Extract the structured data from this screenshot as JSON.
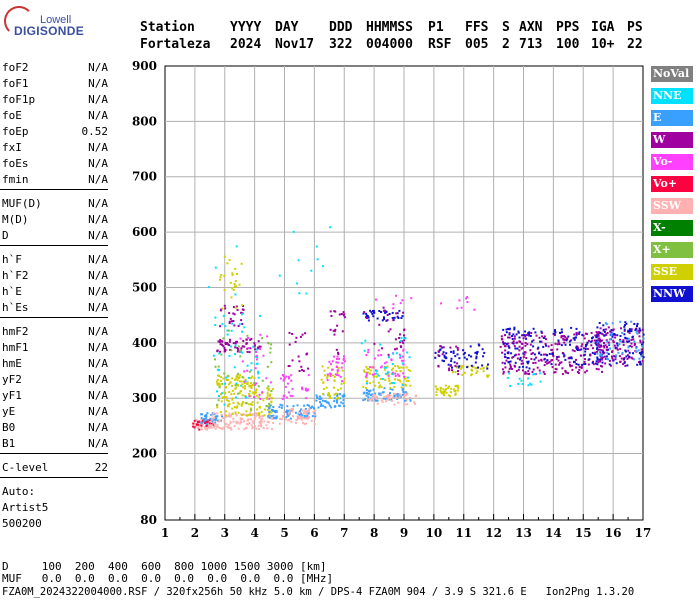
{
  "logo": {
    "top": "Lowell",
    "main": "DIGISONDE"
  },
  "header": {
    "labels": [
      "Station",
      "YYYY",
      "DAY",
      "DDD",
      "HHMMSS",
      "P1",
      "FFS",
      "S",
      "AXN",
      "PPS",
      "IGA",
      "PS"
    ],
    "values": [
      "Fortaleza",
      "2024",
      "Nov17",
      "322",
      "004000",
      "RSF",
      "005",
      "2",
      "713",
      "100",
      "10+",
      "22"
    ]
  },
  "params": [
    [
      {
        "name": "foF2",
        "value": "N/A"
      },
      {
        "name": "foF1",
        "value": "N/A"
      },
      {
        "name": "foF1p",
        "value": "N/A"
      },
      {
        "name": "foE",
        "value": "N/A"
      },
      {
        "name": "foEp",
        "value": "0.52"
      },
      {
        "name": "fxI",
        "value": "N/A"
      },
      {
        "name": "foEs",
        "value": "N/A"
      },
      {
        "name": "fmin",
        "value": "N/A"
      }
    ],
    [
      {
        "name": "MUF(D)",
        "value": "N/A"
      },
      {
        "name": "M(D)",
        "value": "N/A"
      },
      {
        "name": "D",
        "value": "N/A"
      }
    ],
    [
      {
        "name": "h`F",
        "value": "N/A"
      },
      {
        "name": "h`F2",
        "value": "N/A"
      },
      {
        "name": "h`E",
        "value": "N/A"
      },
      {
        "name": "h`Es",
        "value": "N/A"
      }
    ],
    [
      {
        "name": "hmF2",
        "value": "N/A"
      },
      {
        "name": "hmF1",
        "value": "N/A"
      },
      {
        "name": "hmE",
        "value": "N/A"
      },
      {
        "name": "yF2",
        "value": "N/A"
      },
      {
        "name": "yF1",
        "value": "N/A"
      },
      {
        "name": "yE",
        "value": "N/A"
      },
      {
        "name": "B0",
        "value": "N/A"
      },
      {
        "name": "B1",
        "value": "N/A"
      }
    ],
    [
      {
        "name": "C-level",
        "value": "22"
      }
    ]
  ],
  "auto": {
    "line1": "Auto:",
    "line2": "Artist5",
    "line3": "500200"
  },
  "footer": {
    "d_line": "D     100  200  400  600  800 1000 1500 3000 [km]",
    "muf_line": "MUF   0.0  0.0  0.0  0.0  0.0  0.0  0.0  0.0 [MHz]",
    "file_line": "FZA0M_2024322004000.RSF / 320fx256h 50 kHz 5.0 km / DPS-4 FZA0M 904 / 3.9 S 321.6 E   Ion2Png 1.3.20"
  },
  "legend": [
    {
      "label": "NoVal",
      "color": "#808080"
    },
    {
      "label": "NNE",
      "color": "#00e0ff"
    },
    {
      "label": "E",
      "color": "#3aa0ff"
    },
    {
      "label": "W",
      "color": "#a000a0"
    },
    {
      "label": "Vo-",
      "color": "#ff40ff"
    },
    {
      "label": "Vo+",
      "color": "#ff0040"
    },
    {
      "label": "SSW",
      "color": "#ffb0b0"
    },
    {
      "label": "X-",
      "color": "#008000"
    },
    {
      "label": "X+",
      "color": "#80c040"
    },
    {
      "label": "SSE",
      "color": "#d0d000"
    },
    {
      "label": "NNW",
      "color": "#1010d0"
    }
  ],
  "chart_data": {
    "type": "scatter",
    "title": "",
    "xlabel": "",
    "ylabel": "",
    "xlim": [
      1,
      17
    ],
    "ylim": [
      80,
      900
    ],
    "x_ticks": [
      1,
      2,
      3,
      4,
      5,
      6,
      7,
      8,
      9,
      10,
      11,
      12,
      13,
      14,
      15,
      16,
      17
    ],
    "y_ticks": [
      80,
      200,
      300,
      400,
      500,
      600,
      700,
      800,
      900
    ],
    "grid": true,
    "legend_position": "right",
    "clusters": [
      {
        "x": [
          1.9,
          2.6
        ],
        "y": [
          245,
          265
        ],
        "color": "#ffb0b0",
        "n": 40
      },
      {
        "x": [
          1.9,
          2.6
        ],
        "y": [
          245,
          262
        ],
        "color": "#ff0040",
        "n": 25
      },
      {
        "x": [
          2.1,
          2.9
        ],
        "y": [
          255,
          275
        ],
        "color": "#3aa0ff",
        "n": 30
      },
      {
        "x": [
          2.5,
          4.6
        ],
        "y": [
          245,
          275
        ],
        "color": "#ffb0b0",
        "n": 120
      },
      {
        "x": [
          2.7,
          4.6
        ],
        "y": [
          270,
          320
        ],
        "color": "#d0d000",
        "n": 110
      },
      {
        "x": [
          2.7,
          4.0
        ],
        "y": [
          320,
          345
        ],
        "color": "#d0d000",
        "n": 60
      },
      {
        "x": [
          2.7,
          4.2
        ],
        "y": [
          385,
          410
        ],
        "color": "#a000a0",
        "n": 60
      },
      {
        "x": [
          2.8,
          3.6
        ],
        "y": [
          430,
          470
        ],
        "color": "#a000a0",
        "n": 25
      },
      {
        "x": [
          2.8,
          3.6
        ],
        "y": [
          460,
          560
        ],
        "color": "#d0d000",
        "n": 25
      },
      {
        "x": [
          2.6,
          4.2
        ],
        "y": [
          290,
          460
        ],
        "color": "#00e0ff",
        "n": 50
      },
      {
        "x": [
          2.6,
          4.6
        ],
        "y": [
          280,
          430
        ],
        "color": "#80c040",
        "n": 40
      },
      {
        "x": [
          3.4,
          4.6
        ],
        "y": [
          300,
          420
        ],
        "color": "#ff40ff",
        "n": 25
      },
      {
        "x": [
          4.4,
          6.0
        ],
        "y": [
          265,
          290
        ],
        "color": "#3aa0ff",
        "n": 80
      },
      {
        "x": [
          4.8,
          6.0
        ],
        "y": [
          255,
          285
        ],
        "color": "#ffb0b0",
        "n": 60
      },
      {
        "x": [
          4.8,
          5.8
        ],
        "y": [
          300,
          350
        ],
        "color": "#ff40ff",
        "n": 30
      },
      {
        "x": [
          5.0,
          5.8
        ],
        "y": [
          350,
          420
        ],
        "color": "#a000a0",
        "n": 20
      },
      {
        "x": [
          6.0,
          7.0
        ],
        "y": [
          285,
          310
        ],
        "color": "#3aa0ff",
        "n": 50
      },
      {
        "x": [
          6.2,
          7.0
        ],
        "y": [
          300,
          360
        ],
        "color": "#d0d000",
        "n": 40
      },
      {
        "x": [
          6.4,
          7.0
        ],
        "y": [
          330,
          380
        ],
        "color": "#ff40ff",
        "n": 30
      },
      {
        "x": [
          6.5,
          7.0
        ],
        "y": [
          380,
          470
        ],
        "color": "#a000a0",
        "n": 20
      },
      {
        "x": [
          7.6,
          9.2
        ],
        "y": [
          295,
          320
        ],
        "color": "#3aa0ff",
        "n": 70
      },
      {
        "x": [
          7.8,
          9.4
        ],
        "y": [
          290,
          310
        ],
        "color": "#ffb0b0",
        "n": 50
      },
      {
        "x": [
          7.6,
          9.2
        ],
        "y": [
          320,
          360
        ],
        "color": "#d0d000",
        "n": 70
      },
      {
        "x": [
          7.6,
          9.0
        ],
        "y": [
          340,
          390
        ],
        "color": "#ff40ff",
        "n": 40
      },
      {
        "x": [
          7.6,
          9.0
        ],
        "y": [
          440,
          460
        ],
        "color": "#1010d0",
        "n": 40
      },
      {
        "x": [
          7.6,
          9.0
        ],
        "y": [
          380,
          470
        ],
        "color": "#a000a0",
        "n": 30
      },
      {
        "x": [
          7.5,
          9.2
        ],
        "y": [
          320,
          420
        ],
        "color": "#00e0ff",
        "n": 30
      },
      {
        "x": [
          10.0,
          10.8
        ],
        "y": [
          305,
          325
        ],
        "color": "#d0d000",
        "n": 40
      },
      {
        "x": [
          10.0,
          10.8
        ],
        "y": [
          355,
          395
        ],
        "color": "#1010d0",
        "n": 30
      },
      {
        "x": [
          10.1,
          10.8
        ],
        "y": [
          345,
          400
        ],
        "color": "#a000a0",
        "n": 20
      },
      {
        "x": [
          10.6,
          11.8
        ],
        "y": [
          340,
          360
        ],
        "color": "#d0d000",
        "n": 30
      },
      {
        "x": [
          10.8,
          11.8
        ],
        "y": [
          355,
          400
        ],
        "color": "#1010d0",
        "n": 30
      },
      {
        "x": [
          12.2,
          13.8
        ],
        "y": [
          345,
          420
        ],
        "color": "#a000a0",
        "n": 120
      },
      {
        "x": [
          12.2,
          13.8
        ],
        "y": [
          355,
          430
        ],
        "color": "#1010d0",
        "n": 70
      },
      {
        "x": [
          12.4,
          13.6
        ],
        "y": [
          320,
          350
        ],
        "color": "#00e0ff",
        "n": 15
      },
      {
        "x": [
          13.8,
          15.6
        ],
        "y": [
          345,
          420
        ],
        "color": "#a000a0",
        "n": 130
      },
      {
        "x": [
          13.8,
          15.6
        ],
        "y": [
          360,
          430
        ],
        "color": "#1010d0",
        "n": 70
      },
      {
        "x": [
          15.4,
          17.0
        ],
        "y": [
          360,
          430
        ],
        "color": "#a000a0",
        "n": 120
      },
      {
        "x": [
          15.4,
          17.0
        ],
        "y": [
          360,
          440
        ],
        "color": "#1010d0",
        "n": 90
      },
      {
        "x": [
          15.4,
          17.0
        ],
        "y": [
          370,
          440
        ],
        "color": "#3aa0ff",
        "n": 40
      },
      {
        "x": [
          2.4,
          6.5
        ],
        "y": [
          470,
          620
        ],
        "color": "#00e0ff",
        "n": 15
      },
      {
        "x": [
          8.0,
          11.5
        ],
        "y": [
          460,
          490
        ],
        "color": "#ff40ff",
        "n": 15
      }
    ]
  }
}
